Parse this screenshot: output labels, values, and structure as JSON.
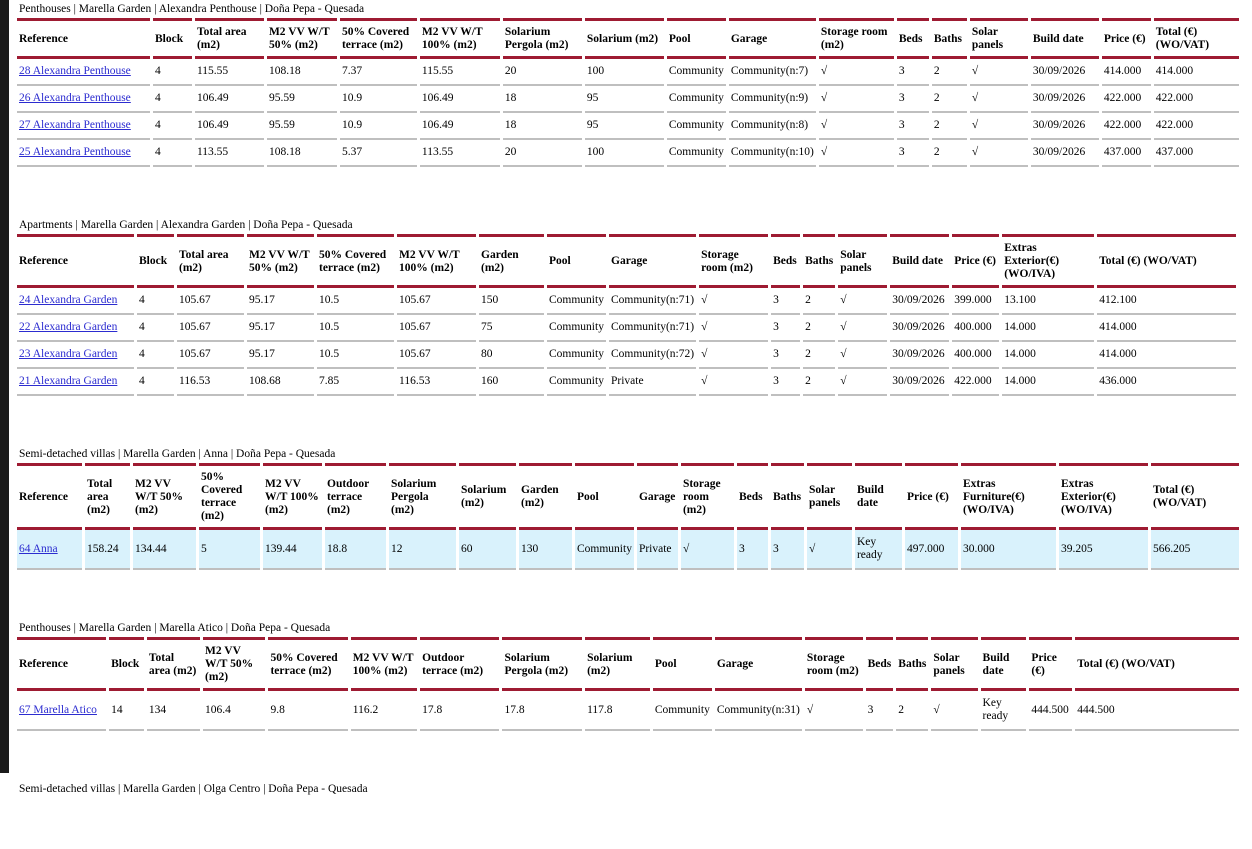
{
  "page": {
    "accent_red": "#9e1b32",
    "row_divider_gray": "#bfbfbf",
    "link_color": "#2c2cd0",
    "highlight_bg": "#d9f2fc",
    "checkmark": "√"
  },
  "sections": [
    {
      "heading": "Penthouses | Marella Garden | Alexandra Penthouse | Doña Pepa - Quesada",
      "columns": [
        "Reference",
        "Block",
        "Total area (m2)",
        "M2 VV W/T 50% (m2)",
        "50% Covered terrace (m2)",
        "M2 VV W/T 100% (m2)",
        "Solarium Pergola (m2)",
        "Solarium (m2)",
        "Pool",
        "Garage",
        "Storage room (m2)",
        "Beds",
        "Baths",
        "Solar panels",
        "Build date",
        "Price (€)",
        "Total (€) (WO/VAT)"
      ],
      "highlight_row": null,
      "rows": [
        [
          "28 Alexandra Penthouse",
          "4",
          "115.55",
          "108.18",
          "7.37",
          "115.55",
          "20",
          "100",
          "Community",
          "Community(n:7)",
          "√",
          "3",
          "2",
          "√",
          "30/09/2026",
          "414.000",
          "414.000"
        ],
        [
          "26 Alexandra Penthouse",
          "4",
          "106.49",
          "95.59",
          "10.9",
          "106.49",
          "18",
          "95",
          "Community",
          "Community(n:9)",
          "√",
          "3",
          "2",
          "√",
          "30/09/2026",
          "422.000",
          "422.000"
        ],
        [
          "27 Alexandra Penthouse",
          "4",
          "106.49",
          "95.59",
          "10.9",
          "106.49",
          "18",
          "95",
          "Community",
          "Community(n:8)",
          "√",
          "3",
          "2",
          "√",
          "30/09/2026",
          "422.000",
          "422.000"
        ],
        [
          "25 Alexandra Penthouse",
          "4",
          "113.55",
          "108.18",
          "5.37",
          "113.55",
          "20",
          "100",
          "Community",
          "Community(n:10)",
          "√",
          "3",
          "2",
          "√",
          "30/09/2026",
          "437.000",
          "437.000"
        ]
      ]
    },
    {
      "heading": "Apartments | Marella Garden | Alexandra Garden | Doña Pepa - Quesada",
      "columns": [
        "Reference",
        "Block",
        "Total area (m2)",
        "M2 VV W/T 50% (m2)",
        "50% Covered terrace (m2)",
        "M2 VV W/T 100% (m2)",
        "Garden (m2)",
        "Pool",
        "Garage",
        "Storage room (m2)",
        "Beds",
        "Baths",
        "Solar panels",
        "Build date",
        "Price (€)",
        "Extras Exterior(€) (WO/IVA)",
        "Total (€) (WO/VAT)"
      ],
      "highlight_row": null,
      "rows": [
        [
          "24 Alexandra Garden",
          "4",
          "105.67",
          "95.17",
          "10.5",
          "105.67",
          "150",
          "Community",
          "Community(n:71)",
          "√",
          "3",
          "2",
          "√",
          "30/09/2026",
          "399.000",
          "13.100",
          "412.100"
        ],
        [
          "22 Alexandra Garden",
          "4",
          "105.67",
          "95.17",
          "10.5",
          "105.67",
          "75",
          "Community",
          "Community(n:71)",
          "√",
          "3",
          "2",
          "√",
          "30/09/2026",
          "400.000",
          "14.000",
          "414.000"
        ],
        [
          "23 Alexandra Garden",
          "4",
          "105.67",
          "95.17",
          "10.5",
          "105.67",
          "80",
          "Community",
          "Community(n:72)",
          "√",
          "3",
          "2",
          "√",
          "30/09/2026",
          "400.000",
          "14.000",
          "414.000"
        ],
        [
          "21 Alexandra Garden",
          "4",
          "116.53",
          "108.68",
          "7.85",
          "116.53",
          "160",
          "Community",
          "Private",
          "√",
          "3",
          "2",
          "√",
          "30/09/2026",
          "422.000",
          "14.000",
          "436.000"
        ]
      ]
    },
    {
      "heading": "Semi-detached villas | Marella Garden | Anna | Doña Pepa - Quesada",
      "columns": [
        "Reference",
        "Total area (m2)",
        "M2 VV W/T 50% (m2)",
        "50% Covered terrace (m2)",
        "M2 VV W/T 100% (m2)",
        "Outdoor terrace (m2)",
        "Solarium Pergola (m2)",
        "Solarium (m2)",
        "Garden (m2)",
        "Pool",
        "Garage",
        "Storage room (m2)",
        "Beds",
        "Baths",
        "Solar panels",
        "Build date",
        "Price (€)",
        "Extras Furniture(€) (WO/IVA)",
        "Extras Exterior(€) (WO/IVA)",
        "Total (€) (WO/VAT)"
      ],
      "highlight_row": 0,
      "rows": [
        [
          "64 Anna",
          "158.24",
          "134.44",
          "5",
          "139.44",
          "18.8",
          "12",
          "60",
          "130",
          "Community",
          "Private",
          "√",
          "3",
          "3",
          "√",
          "Key ready",
          "497.000",
          "30.000",
          "39.205",
          "566.205"
        ]
      ]
    },
    {
      "heading": "Penthouses | Marella Garden | Marella Atico | Doña Pepa - Quesada",
      "columns": [
        "Reference",
        "Block",
        "Total area (m2)",
        "M2 VV W/T 50% (m2)",
        "50% Covered terrace (m2)",
        "M2 VV W/T 100% (m2)",
        "Outdoor terrace (m2)",
        "Solarium Pergola (m2)",
        "Solarium (m2)",
        "Pool",
        "Garage",
        "Storage room (m2)",
        "Beds",
        "Baths",
        "Solar panels",
        "Build date",
        "Price (€)",
        "Total (€) (WO/VAT)"
      ],
      "highlight_row": null,
      "rows": [
        [
          "67 Marella Atico",
          "14",
          "134",
          "106.4",
          "9.8",
          "116.2",
          "17.8",
          "17.8",
          "117.8",
          "Community",
          "Community(n:31)",
          "√",
          "3",
          "2",
          "√",
          "Key ready",
          "444.500",
          "444.500"
        ]
      ]
    },
    {
      "heading": "Semi-detached villas | Marella Garden | Olga Centro | Doña Pepa - Quesada",
      "columns": [],
      "highlight_row": null,
      "rows": []
    }
  ]
}
